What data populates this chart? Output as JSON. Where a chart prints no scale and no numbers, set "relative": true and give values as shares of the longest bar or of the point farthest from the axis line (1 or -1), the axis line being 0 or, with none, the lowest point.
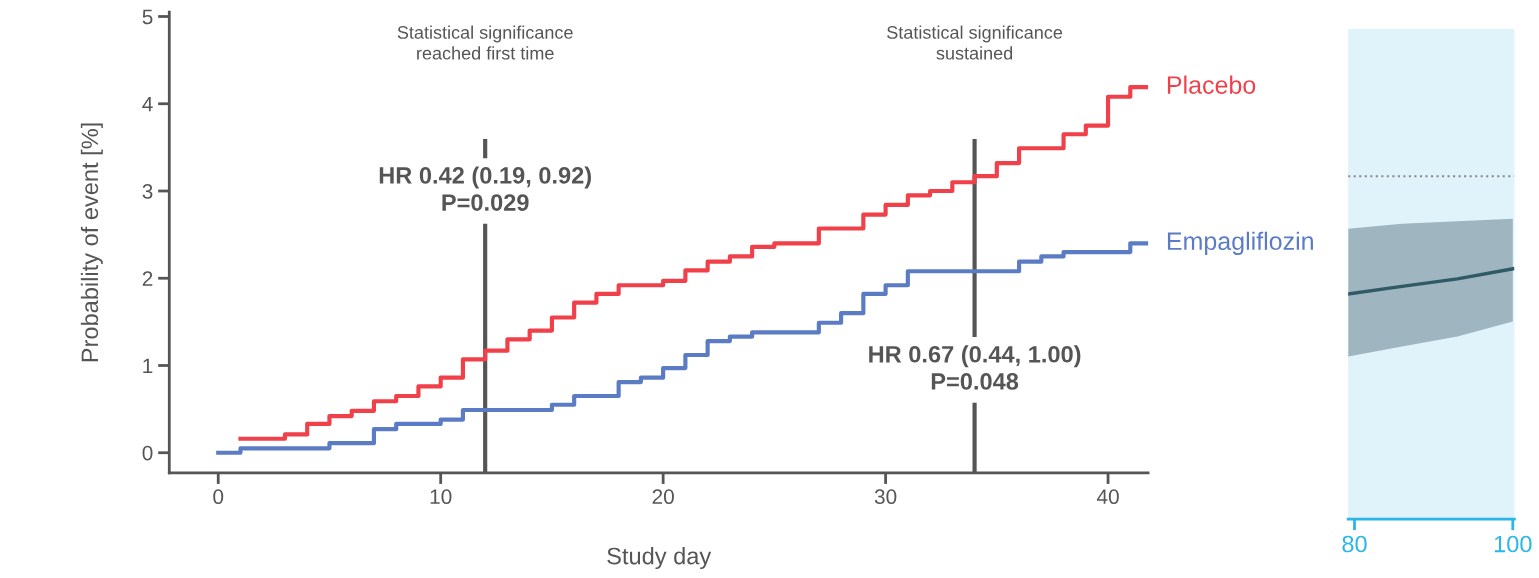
{
  "chart_data": [
    {
      "type": "step",
      "xlabel": "Study day",
      "ylabel": "Probability of event [%]",
      "xlim": [
        -2.2,
        41.8
      ],
      "xticks": [
        0,
        10,
        20,
        30,
        40
      ],
      "ylim": [
        -0.23,
        5.05
      ],
      "yticks": [
        0,
        1,
        2,
        3,
        4,
        5
      ],
      "grid": false,
      "legend": false,
      "series": [
        {
          "name": "Placebo",
          "color": "#f0404a",
          "x": [
            1,
            3,
            4,
            5,
            6,
            7,
            8,
            9,
            10,
            11,
            12,
            13,
            14,
            15,
            16,
            17,
            18,
            20,
            21,
            22,
            23,
            24,
            25,
            27,
            29,
            30,
            31,
            32,
            33,
            34,
            35,
            36,
            38,
            39,
            40,
            41,
            41.8
          ],
          "values": [
            0.16,
            0.21,
            0.33,
            0.42,
            0.48,
            0.59,
            0.65,
            0.76,
            0.86,
            1.07,
            1.17,
            1.3,
            1.4,
            1.55,
            1.72,
            1.82,
            1.92,
            1.97,
            2.09,
            2.19,
            2.25,
            2.36,
            2.4,
            2.57,
            2.73,
            2.84,
            2.95,
            3.0,
            3.1,
            3.17,
            3.32,
            3.49,
            3.65,
            3.75,
            4.08,
            4.19,
            4.19
          ]
        },
        {
          "name": "Empagliflozin",
          "color": "#5b7cc4",
          "x": [
            0,
            1,
            5,
            7,
            8,
            10,
            11,
            15,
            16,
            18,
            19,
            20,
            21,
            22,
            23,
            24,
            27,
            28,
            29,
            30,
            31,
            36,
            37,
            38,
            41,
            41.8
          ],
          "values": [
            0,
            0.05,
            0.11,
            0.27,
            0.33,
            0.38,
            0.49,
            0.55,
            0.65,
            0.81,
            0.86,
            0.97,
            1.12,
            1.28,
            1.33,
            1.38,
            1.49,
            1.6,
            1.82,
            1.92,
            2.08,
            2.19,
            2.25,
            2.3,
            2.4,
            2.4
          ]
        }
      ],
      "ref_lines": [
        {
          "axis": "x",
          "value": 12,
          "color": "#555555"
        },
        {
          "axis": "x",
          "value": 34,
          "color": "#555555"
        }
      ],
      "annotations": [
        "Statistical significance\nreached first time",
        {
          "text": "HR 0.42 (0.19, 0.92)\nP=0.029",
          "x": 12,
          "y": 3.0
        },
        "Statistical significance\nsustained",
        {
          "text": "HR 0.67 (0.44, 1.00)\nP=0.048",
          "x": 34,
          "y": 0.95
        }
      ]
    },
    {
      "type": "line",
      "relative": true,
      "xlim": [
        79.2,
        100.2
      ],
      "xticks": [
        80,
        100
      ],
      "tick_labels": "x",
      "grid": false,
      "legend": false,
      "series": [
        {
          "color": "#2f5a66",
          "x": [
            79.2,
            86,
            93,
            100
          ],
          "values": [
            0.9,
            0.93,
            0.96,
            1.0
          ],
          "lower": [
            0.65,
            0.69,
            0.73,
            0.79
          ],
          "upper": [
            1.16,
            1.18,
            1.19,
            1.2
          ]
        }
      ],
      "ref_lines": [
        {
          "axis": "y",
          "value": 1.37,
          "color": "#888888",
          "line_style": "dotted"
        }
      ]
    }
  ]
}
